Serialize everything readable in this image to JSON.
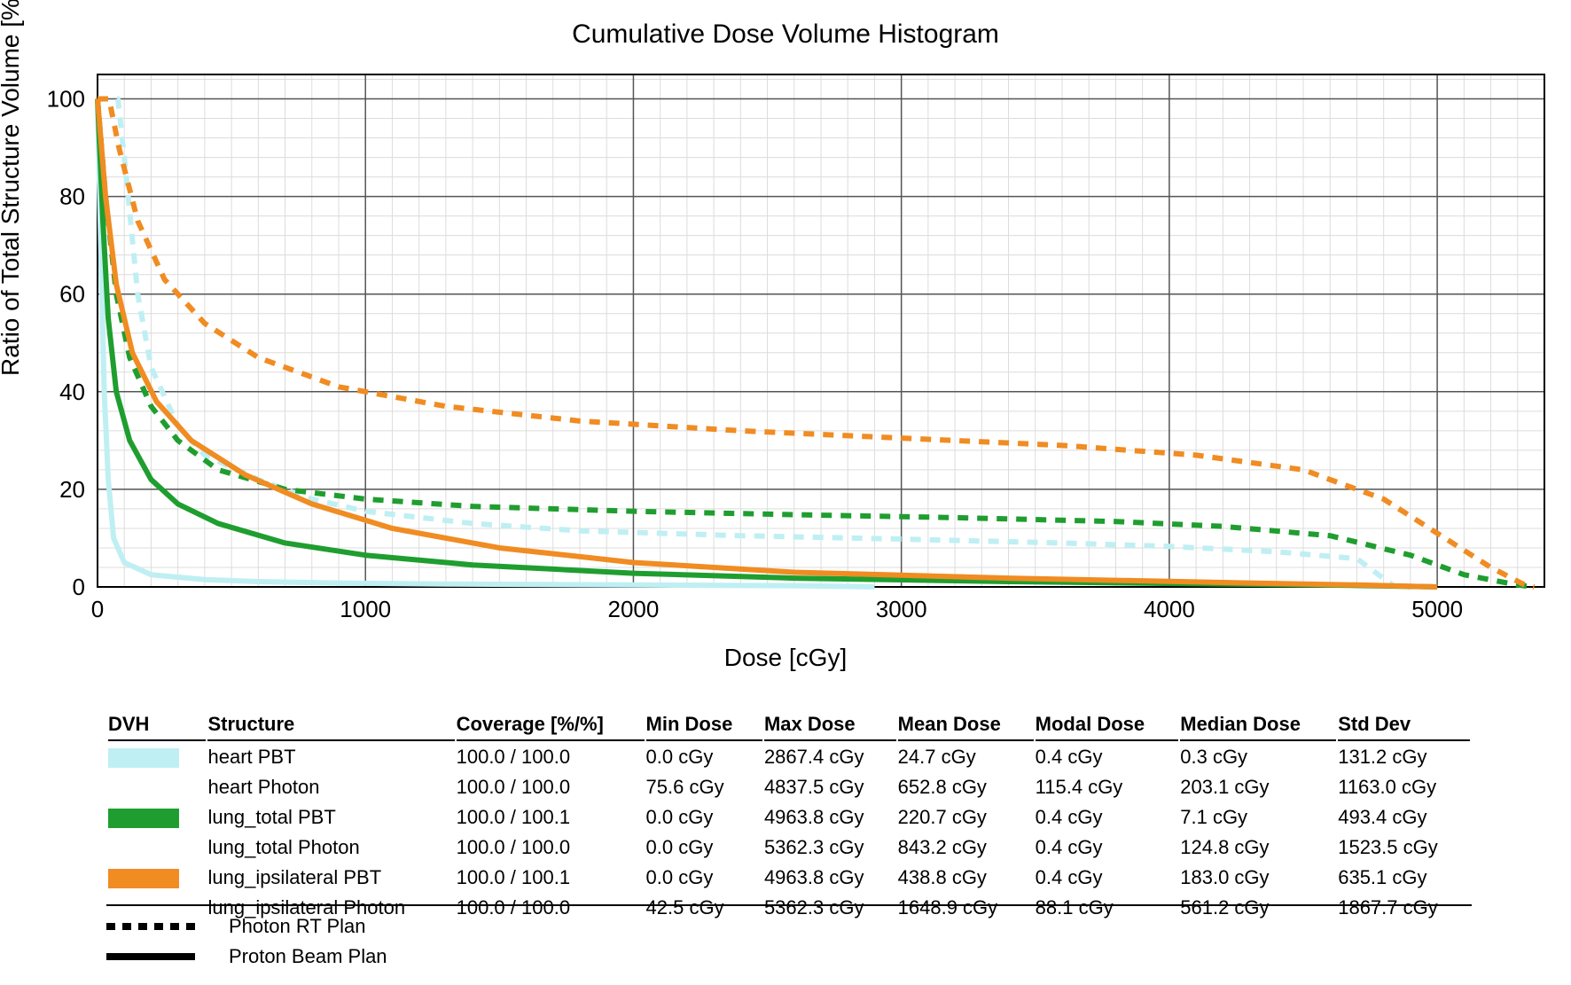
{
  "chart": {
    "title": "Cumulative Dose Volume Histogram",
    "type": "line",
    "xlabel": "Dose [cGy]",
    "ylabel": "Ratio of Total Structure Volume [%]",
    "xlim": [
      0,
      5400
    ],
    "ylim": [
      0,
      105
    ],
    "xtick_step": 1000,
    "ytick_step": 20,
    "minor_xtick_step": 100,
    "minor_ytick_step": 4,
    "background_color": "#ffffff",
    "grid_major_color": "#555555",
    "grid_minor_color": "#dcdcdc",
    "axis_color": "#000000",
    "line_width_solid": 6,
    "line_width_dashed": 6,
    "dash_pattern": "12 10",
    "title_fontsize": 30,
    "label_fontsize": 28,
    "tick_fontsize": 26,
    "x_ticks": [
      0,
      1000,
      2000,
      3000,
      4000,
      5000
    ],
    "y_ticks": [
      0,
      20,
      40,
      60,
      80,
      100
    ],
    "series": [
      {
        "name": "heart PBT",
        "color": "#bfeff3",
        "style": "solid",
        "points": [
          [
            0,
            100
          ],
          [
            12,
            70
          ],
          [
            25,
            40
          ],
          [
            40,
            22
          ],
          [
            60,
            10
          ],
          [
            100,
            5
          ],
          [
            200,
            2.5
          ],
          [
            400,
            1.5
          ],
          [
            600,
            1.1
          ],
          [
            900,
            0.8
          ],
          [
            1300,
            0.6
          ],
          [
            2000,
            0.4
          ],
          [
            2600,
            0.25
          ],
          [
            2867,
            0.05
          ],
          [
            2900,
            0
          ]
        ]
      },
      {
        "name": "heart Photon",
        "color": "#bfeff3",
        "style": "dashed",
        "points": [
          [
            0,
            100
          ],
          [
            76,
            100
          ],
          [
            100,
            88
          ],
          [
            150,
            60
          ],
          [
            200,
            45
          ],
          [
            300,
            33
          ],
          [
            400,
            27
          ],
          [
            600,
            22
          ],
          [
            800,
            18
          ],
          [
            1000,
            15.5
          ],
          [
            1400,
            13
          ],
          [
            1800,
            11.5
          ],
          [
            2400,
            10.5
          ],
          [
            3000,
            9.8
          ],
          [
            3600,
            9
          ],
          [
            4000,
            8.3
          ],
          [
            4400,
            7.2
          ],
          [
            4700,
            5.8
          ],
          [
            4838,
            0.2
          ],
          [
            4900,
            0
          ]
        ]
      },
      {
        "name": "lung_total PBT",
        "color": "#1f9e2f",
        "style": "solid",
        "points": [
          [
            0,
            100
          ],
          [
            20,
            75
          ],
          [
            40,
            55
          ],
          [
            70,
            40
          ],
          [
            120,
            30
          ],
          [
            200,
            22
          ],
          [
            300,
            17
          ],
          [
            450,
            13
          ],
          [
            700,
            9
          ],
          [
            1000,
            6.5
          ],
          [
            1400,
            4.5
          ],
          [
            2000,
            2.8
          ],
          [
            2600,
            1.8
          ],
          [
            3400,
            1.1
          ],
          [
            4200,
            0.6
          ],
          [
            4700,
            0.3
          ],
          [
            4964,
            0.05
          ],
          [
            5000,
            0
          ]
        ]
      },
      {
        "name": "lung_total Photon",
        "color": "#1f9e2f",
        "style": "dashed",
        "points": [
          [
            0,
            100
          ],
          [
            30,
            80
          ],
          [
            70,
            60
          ],
          [
            120,
            47
          ],
          [
            200,
            37
          ],
          [
            300,
            30
          ],
          [
            450,
            24
          ],
          [
            700,
            20
          ],
          [
            1000,
            18
          ],
          [
            1400,
            16.5
          ],
          [
            2000,
            15.5
          ],
          [
            2600,
            14.8
          ],
          [
            3200,
            14.2
          ],
          [
            3800,
            13.4
          ],
          [
            4200,
            12.4
          ],
          [
            4600,
            10.5
          ],
          [
            4900,
            6.5
          ],
          [
            5100,
            2.5
          ],
          [
            5300,
            0.4
          ],
          [
            5362,
            0
          ]
        ]
      },
      {
        "name": "lung_ipsilateral PBT",
        "color": "#f08c22",
        "style": "solid",
        "points": [
          [
            0,
            100
          ],
          [
            30,
            80
          ],
          [
            70,
            62
          ],
          [
            130,
            48
          ],
          [
            220,
            38
          ],
          [
            350,
            30
          ],
          [
            550,
            23
          ],
          [
            800,
            17
          ],
          [
            1100,
            12
          ],
          [
            1500,
            8
          ],
          [
            2000,
            5
          ],
          [
            2600,
            3
          ],
          [
            3400,
            1.8
          ],
          [
            4200,
            0.9
          ],
          [
            4700,
            0.4
          ],
          [
            4964,
            0.05
          ],
          [
            5000,
            0
          ]
        ]
      },
      {
        "name": "lung_ipsilateral Photon",
        "color": "#f08c22",
        "style": "dashed",
        "points": [
          [
            0,
            100
          ],
          [
            43,
            100
          ],
          [
            80,
            90
          ],
          [
            150,
            75
          ],
          [
            250,
            63
          ],
          [
            400,
            54
          ],
          [
            600,
            47
          ],
          [
            900,
            41
          ],
          [
            1300,
            37
          ],
          [
            1800,
            34
          ],
          [
            2400,
            32
          ],
          [
            3000,
            30.5
          ],
          [
            3600,
            29
          ],
          [
            4100,
            27
          ],
          [
            4500,
            24
          ],
          [
            4800,
            18
          ],
          [
            5000,
            11
          ],
          [
            5200,
            4
          ],
          [
            5320,
            0.6
          ],
          [
            5362,
            0
          ]
        ]
      }
    ]
  },
  "table": {
    "columns": [
      "DVH",
      "Structure",
      "Coverage [%/%]",
      "Min Dose",
      "Max Dose",
      "Mean Dose",
      "Modal Dose",
      "Median Dose",
      "Std Dev"
    ],
    "rows": [
      {
        "swatch_color": "#bfeff3",
        "swatch_style": "solid",
        "structure": "heart PBT",
        "coverage": "100.0 / 100.0",
        "min": "0.0 cGy",
        "max": "2867.4 cGy",
        "mean": "24.7 cGy",
        "modal": "0.4 cGy",
        "median": "0.3 cGy",
        "std": "131.2 cGy"
      },
      {
        "swatch_color": "",
        "swatch_style": "none",
        "structure": "heart Photon",
        "coverage": "100.0 / 100.0",
        "min": "75.6 cGy",
        "max": "4837.5 cGy",
        "mean": "652.8 cGy",
        "modal": "115.4 cGy",
        "median": "203.1 cGy",
        "std": "1163.0 cGy"
      },
      {
        "swatch_color": "#1f9e2f",
        "swatch_style": "solid",
        "structure": "lung_total PBT",
        "coverage": "100.0 / 100.1",
        "min": "0.0 cGy",
        "max": "4963.8 cGy",
        "mean": "220.7 cGy",
        "modal": "0.4 cGy",
        "median": "7.1 cGy",
        "std": "493.4 cGy"
      },
      {
        "swatch_color": "",
        "swatch_style": "none",
        "structure": "lung_total Photon",
        "coverage": "100.0 / 100.0",
        "min": "0.0 cGy",
        "max": "5362.3 cGy",
        "mean": "843.2 cGy",
        "modal": "0.4 cGy",
        "median": "124.8 cGy",
        "std": "1523.5 cGy"
      },
      {
        "swatch_color": "#f08c22",
        "swatch_style": "solid",
        "structure": "lung_ipsilateral PBT",
        "coverage": "100.0 / 100.1",
        "min": "0.0 cGy",
        "max": "4963.8 cGy",
        "mean": "438.8 cGy",
        "modal": "0.4 cGy",
        "median": "183.0 cGy",
        "std": "635.1 cGy"
      },
      {
        "swatch_color": "",
        "swatch_style": "none",
        "structure": "lung_ipsilateral Photon",
        "coverage": "100.0 / 100.0",
        "min": "42.5 cGy",
        "max": "5362.3 cGy",
        "mean": "1648.9 cGy",
        "modal": "88.1 cGy",
        "median": "561.2 cGy",
        "std": "1867.7 cGy"
      }
    ]
  },
  "plan_legend": {
    "photon_label": "Photon RT Plan",
    "proton_label": "Proton Beam Plan",
    "color": "#000000",
    "dash_pattern": "10 8",
    "line_width": 8
  }
}
